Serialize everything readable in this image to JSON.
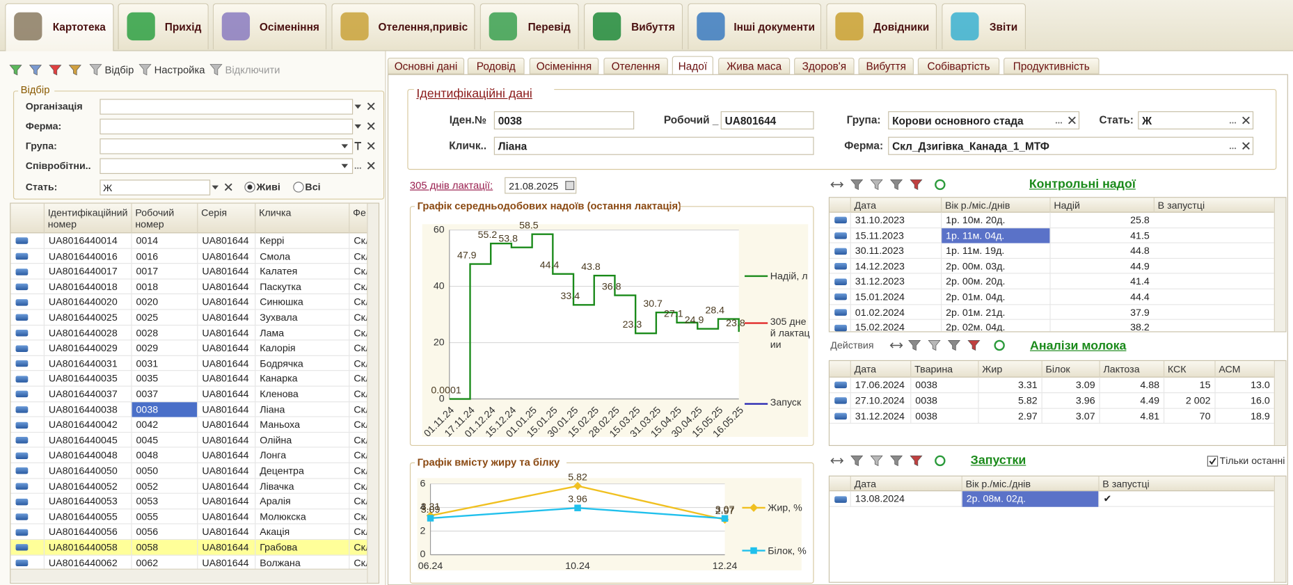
{
  "main_tabs": [
    "Картотека",
    "Прихід",
    "Осіменіння",
    "Отелення,привіс",
    "Перевід",
    "Вибуття",
    "Інші документи",
    "Довідники",
    "Звіти"
  ],
  "toolbar": [
    "Відбір",
    "Настройка",
    "Відключити"
  ],
  "filter": {
    "title": "Відбір",
    "fields": [
      "Організація",
      "Ферма:",
      "Група:",
      "Співробітни.."
    ],
    "sex_label": "Стать:",
    "sex_value": "Ж",
    "radio": [
      "Живі",
      "Всі"
    ]
  },
  "animals_table": {
    "columns": [
      "Ідентифікаційний номер",
      "Робочий номер",
      "Серія",
      "Кличка",
      "Фе"
    ],
    "rows": [
      [
        "UA8016440014",
        "0014",
        "UA801644",
        "Керрі",
        "Скл"
      ],
      [
        "UA8016440016",
        "0016",
        "UA801644",
        "Смола",
        "Скл"
      ],
      [
        "UA8016440017",
        "0017",
        "UA801644",
        "Калатея",
        "Скл"
      ],
      [
        "UA8016440018",
        "0018",
        "UA801644",
        "Паскутка",
        "Скл"
      ],
      [
        "UA8016440020",
        "0020",
        "UA801644",
        "Синюшка",
        "Скл"
      ],
      [
        "UA8016440025",
        "0025",
        "UA801644",
        "Зухвала",
        "Скл"
      ],
      [
        "UA8016440028",
        "0028",
        "UA801644",
        "Лама",
        "Скл"
      ],
      [
        "UA8016440029",
        "0029",
        "UA801644",
        "Калорія",
        "Скл"
      ],
      [
        "UA8016440031",
        "0031",
        "UA801644",
        "Бодрячка",
        "Скл"
      ],
      [
        "UA8016440035",
        "0035",
        "UA801644",
        "Канарка",
        "Скл"
      ],
      [
        "UA8016440037",
        "0037",
        "UA801644",
        "Кленова",
        "Скл"
      ],
      [
        "UA8016440038",
        "0038",
        "UA801644",
        "Ліана",
        "Скл"
      ],
      [
        "UA8016440042",
        "0042",
        "UA801644",
        "Маньоха",
        "Скл"
      ],
      [
        "UA8016440045",
        "0045",
        "UA801644",
        "Олійна",
        "Скл"
      ],
      [
        "UA8016440048",
        "0048",
        "UA801644",
        "Лонга",
        "Скл"
      ],
      [
        "UA8016440050",
        "0050",
        "UA801644",
        "Децентра",
        "Скл"
      ],
      [
        "UA8016440052",
        "0052",
        "UA801644",
        "Лівачка",
        "Скл"
      ],
      [
        "UA8016440053",
        "0053",
        "UA801644",
        "Аралія",
        "Скл"
      ],
      [
        "UA8016440055",
        "0055",
        "UA801644",
        "Молюкска",
        "Скл"
      ],
      [
        "UA8016440056",
        "0056",
        "UA801644",
        "Акація",
        "Скл"
      ],
      [
        "UA8016440058",
        "0058",
        "UA801644",
        "Грабова",
        "Скл"
      ],
      [
        "UA8016440062",
        "0062",
        "UA801644",
        "Волжана",
        "Скл"
      ]
    ]
  },
  "detail_tabs": [
    "Основні дані",
    "Родовід",
    "Осіменіння",
    "Отелення",
    "Надої",
    "Жива маса",
    "Здоров'я",
    "Вибуття",
    "Собівартість",
    "Продуктивність"
  ],
  "ident": {
    "title": "Ідентифікаційні дані",
    "id_label": "Іден.№",
    "id": "0038",
    "work_label": "Робочий _",
    "work": "UA801644",
    "group_label": "Група:",
    "group": "Корови основного стада",
    "sex_label": "Стать:",
    "sex": "Ж",
    "name_label": "Кличк..",
    "name": "Ліана",
    "farm_label": "Ферма:",
    "farm": "Скл_Дзигівка_Канада_1_МТФ"
  },
  "lactation_label": "305 днів лактації:",
  "lactation_date": "21.08.2025",
  "milk_chart": {
    "type": "line",
    "step": true,
    "title": "Графік середньодобових надоїв (остання лактація)",
    "categories": [
      "01.11.24",
      "17.11.24",
      "01.12.24",
      "15.12.24",
      "01.01.25",
      "15.01.25",
      "30.01.25",
      "15.02.25",
      "28.02.25",
      "15.03.25",
      "31.03.25",
      "15.04.25",
      "30.04.25",
      "15.05.25",
      "16.05.25"
    ],
    "series": [
      {
        "name": "Надій, л",
        "color": "#1a8a1a",
        "values": [
          0.0001,
          47.9,
          55.2,
          53.8,
          58.5,
          44.4,
          33.4,
          43.8,
          36.8,
          23.3,
          30.7,
          27.1,
          24.9,
          28.4,
          23.8
        ]
      }
    ],
    "legend_only": [
      {
        "name": "305 дней лактации",
        "color": "#e02020"
      },
      {
        "name": "Запуск",
        "color": "#2020b0"
      }
    ],
    "ylim": [
      0,
      60
    ],
    "yticks": [
      0,
      20,
      40,
      60
    ],
    "grid": true
  },
  "fat_chart": {
    "type": "line",
    "title": "Графік вмісту жиру та білку",
    "categories": [
      "06.24",
      "10.24",
      "12.24"
    ],
    "series": [
      {
        "name": "Жир, %",
        "color": "#f0c020",
        "marker": "diamond",
        "values": [
          3.31,
          5.82,
          2.97
        ]
      },
      {
        "name": "Білок, %",
        "color": "#20c0ec",
        "marker": "square",
        "values": [
          3.09,
          3.96,
          3.07
        ]
      }
    ],
    "ylim": [
      0,
      6
    ],
    "yticks": [
      0,
      2,
      4,
      6
    ],
    "grid": true
  },
  "control_milkings": {
    "title": "Контрольні надої",
    "columns": [
      "Дата",
      "Вік р./міс./днів",
      "Надій",
      "В запустці"
    ],
    "rows": [
      [
        "31.10.2023",
        "1р. 10м. 20д.",
        "25.8"
      ],
      [
        "15.11.2023",
        "1р. 11м. 04д.",
        "41.5"
      ],
      [
        "30.11.2023",
        "1р. 11м. 19д.",
        "44.8"
      ],
      [
        "14.12.2023",
        "2р. 00м. 03д.",
        "44.9"
      ],
      [
        "31.12.2023",
        "2р. 00м. 20д.",
        "41.4"
      ],
      [
        "15.01.2024",
        "2р. 01м. 04д.",
        "44.4"
      ],
      [
        "01.02.2024",
        "2р. 01м. 21д.",
        "37.9"
      ],
      [
        "15.02.2024",
        "2р. 02м. 04д.",
        "38.2"
      ]
    ]
  },
  "milk_analyses": {
    "title": "Аналізи молока",
    "actions": "Действия",
    "columns": [
      "Дата",
      "Тварина",
      "Жир",
      "Білок",
      "Лактоза",
      "КСК",
      "АСМ"
    ],
    "rows": [
      [
        "17.06.2024",
        "0038",
        "3.31",
        "3.09",
        "4.88",
        "15",
        "13.0"
      ],
      [
        "27.10.2024",
        "0038",
        "5.82",
        "3.96",
        "4.49",
        "2 002",
        "16.0"
      ],
      [
        "31.12.2024",
        "0038",
        "2.97",
        "3.07",
        "4.81",
        "70",
        "18.9"
      ]
    ]
  },
  "dry_offs": {
    "title": "Запустки",
    "only_last": "Тільки останні",
    "columns": [
      "Дата",
      "Вік р./міс./днів",
      "В запустці"
    ],
    "rows": [
      [
        "13.08.2024",
        "2р. 08м. 02д.",
        "✔"
      ]
    ]
  }
}
